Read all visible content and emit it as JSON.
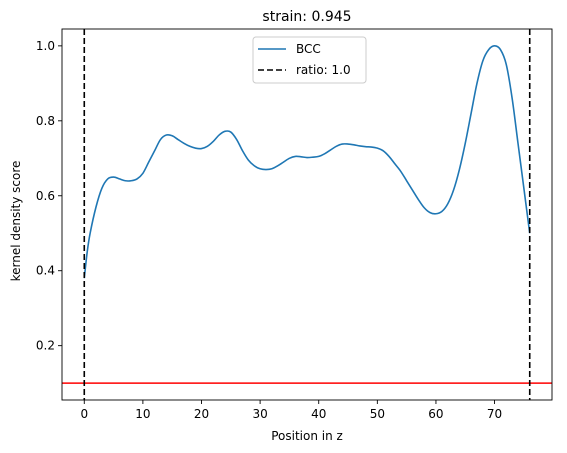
{
  "chart_data": {
    "type": "line",
    "title": "strain: 0.945",
    "xlabel": "Position in z",
    "ylabel": "kernel density score",
    "xlim": [
      -3.8,
      79.8
    ],
    "ylim": [
      0.055,
      1.045
    ],
    "xticks": [
      0,
      10,
      20,
      30,
      40,
      50,
      60,
      70
    ],
    "yticks": [
      0.2,
      0.4,
      0.6,
      0.8,
      1.0
    ],
    "grid": false,
    "legend_position": "top-center",
    "series": [
      {
        "name": "BCC",
        "color": "#1f77b4",
        "style": "solid",
        "x": [
          0,
          0.5,
          1,
          2,
          3,
          4,
          5,
          6,
          7,
          8,
          9,
          10,
          11,
          12,
          13,
          14,
          15,
          16,
          17,
          18,
          19,
          20,
          21,
          22,
          23,
          24,
          25,
          26,
          27,
          28,
          29,
          30,
          31,
          32,
          33,
          34,
          35,
          36,
          37,
          38,
          39,
          40,
          41,
          42,
          43,
          44,
          45,
          46,
          47,
          48,
          49,
          50,
          51,
          52,
          53,
          54,
          55,
          56,
          57,
          58,
          59,
          60,
          61,
          62,
          63,
          64,
          65,
          66,
          67,
          68,
          69,
          70,
          71,
          72,
          73,
          74,
          75,
          76
        ],
        "values": [
          0.38,
          0.45,
          0.5,
          0.57,
          0.62,
          0.645,
          0.65,
          0.645,
          0.64,
          0.64,
          0.645,
          0.66,
          0.69,
          0.72,
          0.75,
          0.762,
          0.76,
          0.75,
          0.74,
          0.732,
          0.727,
          0.726,
          0.732,
          0.745,
          0.762,
          0.772,
          0.77,
          0.75,
          0.72,
          0.695,
          0.68,
          0.672,
          0.67,
          0.672,
          0.68,
          0.69,
          0.7,
          0.705,
          0.704,
          0.702,
          0.703,
          0.705,
          0.712,
          0.722,
          0.732,
          0.738,
          0.738,
          0.736,
          0.733,
          0.731,
          0.73,
          0.727,
          0.72,
          0.705,
          0.685,
          0.665,
          0.64,
          0.615,
          0.59,
          0.568,
          0.555,
          0.552,
          0.558,
          0.578,
          0.615,
          0.67,
          0.74,
          0.82,
          0.9,
          0.96,
          0.99,
          1.0,
          0.99,
          0.95,
          0.86,
          0.74,
          0.62,
          0.5
        ]
      },
      {
        "name": "ratio: 1.0",
        "color": "#000000",
        "style": "dashed",
        "vertical_lines_x": [
          0,
          76
        ]
      }
    ],
    "hline": {
      "y": 0.1,
      "color": "#ff0000"
    }
  }
}
